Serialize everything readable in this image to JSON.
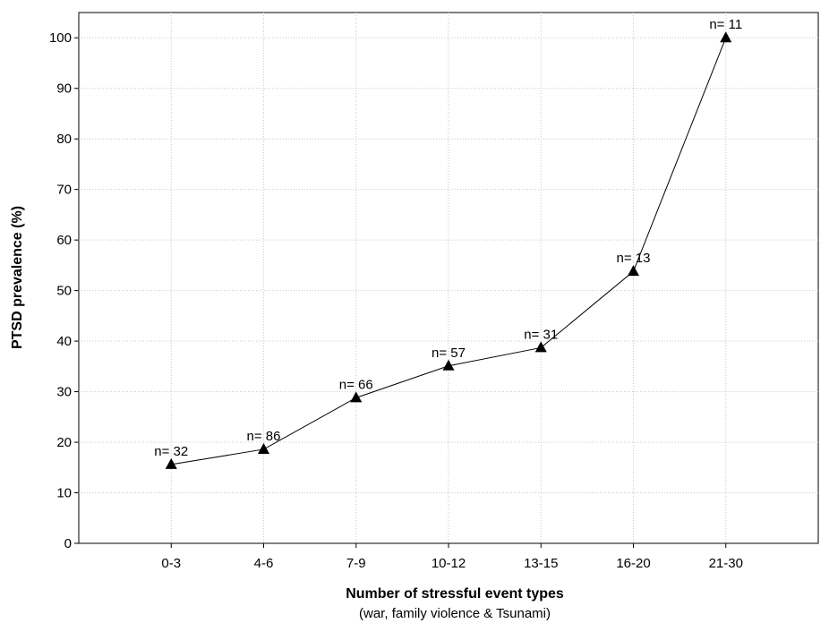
{
  "chart_data": {
    "type": "line",
    "categories": [
      "0-3",
      "4-6",
      "7-9",
      "10-12",
      "13-15",
      "16-20",
      "21-30"
    ],
    "series": [
      {
        "values": [
          15.6,
          18.6,
          28.8,
          35.1,
          38.7,
          53.8,
          100.0
        ],
        "point_labels": [
          "n= 32",
          "n= 86",
          "n= 66",
          "n= 57",
          "n= 31",
          "n= 13",
          "n= 11"
        ]
      }
    ],
    "xlabel": "Number of stressful event types",
    "xlabel_sub": "(war, family violence & Tsunami)",
    "ylabel": "PTSD prevalence (%)",
    "ylim": [
      0,
      105
    ],
    "yticks": [
      0,
      10,
      20,
      30,
      40,
      50,
      60,
      70,
      80,
      90,
      100
    ],
    "grid": true,
    "marker": "triangle",
    "line_color": "#000000"
  }
}
